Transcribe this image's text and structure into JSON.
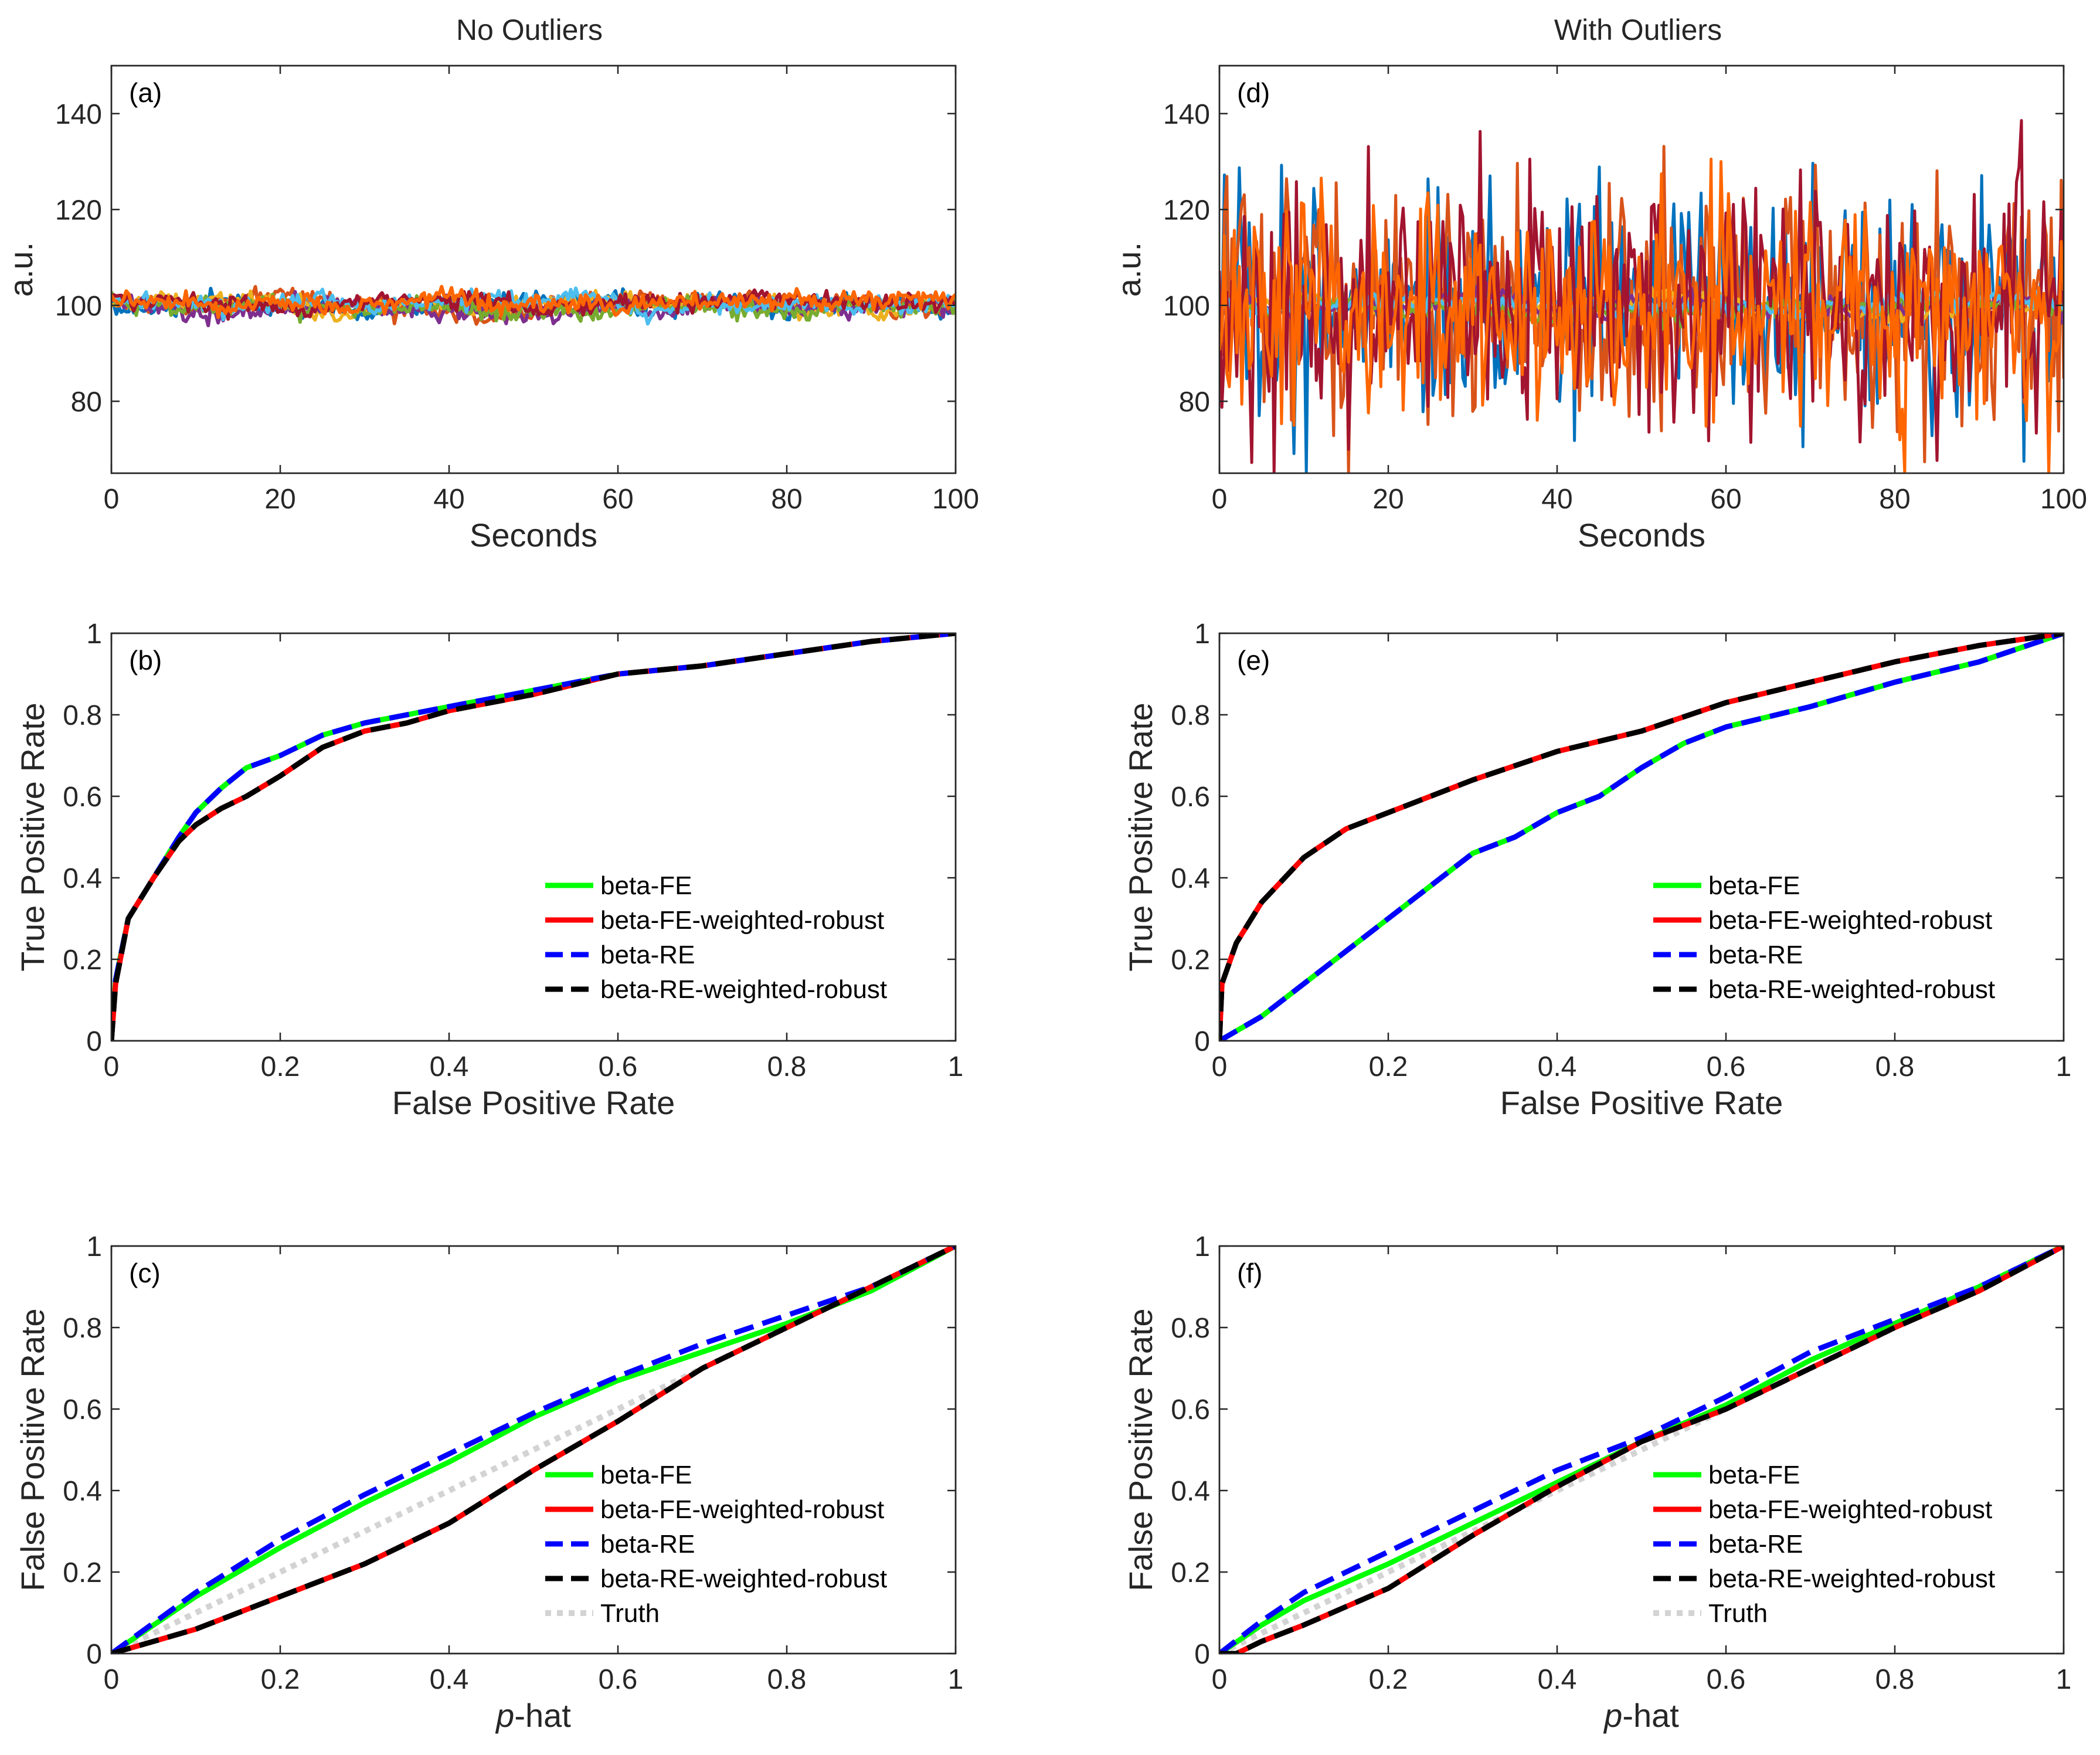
{
  "column_titles": [
    "No Outliers",
    "With Outliers"
  ],
  "colors": {
    "beta-FE": "#00ff00",
    "beta-FE-weighted-robust": "#ff0000",
    "beta-RE": "#0000ff",
    "beta-RE-weighted-robust": "#000000",
    "Truth": "#d3d3d3",
    "timeseries_palette": [
      "#0072bd",
      "#d95319",
      "#edb120",
      "#7e2f8e",
      "#77ac30",
      "#4dbeee",
      "#a2142f",
      "#ff6600"
    ]
  },
  "chart_data": [
    {
      "panel": "(a)",
      "type": "line",
      "column": 0,
      "row": 0,
      "xlabel": "Seconds",
      "ylabel": "a.u.",
      "xlim": [
        0,
        100
      ],
      "ylim": [
        65,
        150
      ],
      "xticks": [
        0,
        20,
        40,
        60,
        80,
        100
      ],
      "yticks": [
        80,
        100,
        120,
        140
      ],
      "series_description": "Eight overlapping noisy time series fluctuating around 100 a.u. (range ≈ 95–105)",
      "n_series": 8,
      "center": 100,
      "spread": 5,
      "outliers": false
    },
    {
      "panel": "(d)",
      "type": "line",
      "column": 1,
      "row": 0,
      "xlabel": "Seconds",
      "ylabel": "a.u.",
      "xlim": [
        0,
        100
      ],
      "ylim": [
        65,
        150
      ],
      "xticks": [
        0,
        20,
        40,
        60,
        80,
        100
      ],
      "yticks": [
        80,
        100,
        120,
        140
      ],
      "series_description": "Eight time series around 100 a.u.; three of them contain large outlier spikes reaching ≈ 65–135",
      "n_series": 8,
      "center": 100,
      "spread": 5,
      "outliers": true
    },
    {
      "panel": "(b)",
      "type": "line",
      "column": 0,
      "row": 1,
      "xlabel": "False Positive Rate",
      "ylabel": "True Positive Rate",
      "xlim": [
        0,
        1
      ],
      "ylim": [
        0,
        1
      ],
      "xticks": [
        0,
        0.2,
        0.4,
        0.6,
        0.8,
        1
      ],
      "yticks": [
        0,
        0.2,
        0.4,
        0.6,
        0.8,
        1
      ],
      "legend": [
        "beta-FE",
        "beta-FE-weighted-robust",
        "beta-RE",
        "beta-RE-weighted-robust"
      ],
      "legend_position": "lower-right",
      "series": [
        {
          "name": "beta-FE",
          "style": "solid",
          "x": [
            0,
            0.005,
            0.02,
            0.05,
            0.08,
            0.1,
            0.13,
            0.16,
            0.2,
            0.25,
            0.3,
            0.35,
            0.4,
            0.5,
            0.6,
            0.7,
            0.8,
            0.9,
            1
          ],
          "y": [
            0,
            0.15,
            0.3,
            0.4,
            0.5,
            0.56,
            0.62,
            0.67,
            0.7,
            0.75,
            0.78,
            0.8,
            0.82,
            0.86,
            0.9,
            0.92,
            0.95,
            0.98,
            1
          ]
        },
        {
          "name": "beta-FE-weighted-robust",
          "style": "solid",
          "x": [
            0,
            0.005,
            0.02,
            0.05,
            0.08,
            0.1,
            0.13,
            0.16,
            0.2,
            0.25,
            0.3,
            0.35,
            0.4,
            0.5,
            0.6,
            0.7,
            0.8,
            0.9,
            1
          ],
          "y": [
            0,
            0.14,
            0.3,
            0.4,
            0.49,
            0.53,
            0.57,
            0.6,
            0.65,
            0.72,
            0.76,
            0.78,
            0.81,
            0.85,
            0.9,
            0.92,
            0.95,
            0.98,
            1
          ]
        },
        {
          "name": "beta-RE",
          "style": "dashed",
          "x": [
            0,
            0.005,
            0.02,
            0.05,
            0.08,
            0.1,
            0.13,
            0.16,
            0.2,
            0.25,
            0.3,
            0.35,
            0.4,
            0.5,
            0.6,
            0.7,
            0.8,
            0.9,
            1
          ],
          "y": [
            0,
            0.15,
            0.3,
            0.4,
            0.5,
            0.56,
            0.62,
            0.67,
            0.7,
            0.75,
            0.78,
            0.8,
            0.82,
            0.86,
            0.9,
            0.92,
            0.95,
            0.98,
            1
          ]
        },
        {
          "name": "beta-RE-weighted-robust",
          "style": "dashed",
          "x": [
            0,
            0.005,
            0.02,
            0.05,
            0.08,
            0.1,
            0.13,
            0.16,
            0.2,
            0.25,
            0.3,
            0.35,
            0.4,
            0.5,
            0.6,
            0.7,
            0.8,
            0.9,
            1
          ],
          "y": [
            0,
            0.14,
            0.3,
            0.4,
            0.49,
            0.53,
            0.57,
            0.6,
            0.65,
            0.72,
            0.76,
            0.78,
            0.81,
            0.85,
            0.9,
            0.92,
            0.95,
            0.98,
            1
          ]
        }
      ]
    },
    {
      "panel": "(e)",
      "type": "line",
      "column": 1,
      "row": 1,
      "xlabel": "False Positive Rate",
      "ylabel": "True Positive Rate",
      "xlim": [
        0,
        1
      ],
      "ylim": [
        0,
        1
      ],
      "xticks": [
        0,
        0.2,
        0.4,
        0.6,
        0.8,
        1
      ],
      "yticks": [
        0,
        0.2,
        0.4,
        0.6,
        0.8,
        1
      ],
      "legend": [
        "beta-FE",
        "beta-FE-weighted-robust",
        "beta-RE",
        "beta-RE-weighted-robust"
      ],
      "legend_position": "lower-right",
      "series": [
        {
          "name": "beta-FE",
          "style": "solid",
          "x": [
            0,
            0.05,
            0.1,
            0.15,
            0.2,
            0.25,
            0.3,
            0.35,
            0.4,
            0.45,
            0.5,
            0.55,
            0.6,
            0.7,
            0.8,
            0.9,
            1
          ],
          "y": [
            0,
            0.06,
            0.14,
            0.22,
            0.3,
            0.38,
            0.46,
            0.5,
            0.56,
            0.6,
            0.67,
            0.73,
            0.77,
            0.82,
            0.88,
            0.93,
            1
          ]
        },
        {
          "name": "beta-FE-weighted-robust",
          "style": "solid",
          "x": [
            0,
            0.003,
            0.02,
            0.05,
            0.1,
            0.15,
            0.2,
            0.25,
            0.3,
            0.4,
            0.5,
            0.6,
            0.7,
            0.8,
            0.9,
            1
          ],
          "y": [
            0,
            0.14,
            0.24,
            0.34,
            0.45,
            0.52,
            0.56,
            0.6,
            0.64,
            0.71,
            0.76,
            0.83,
            0.88,
            0.93,
            0.97,
            1
          ]
        },
        {
          "name": "beta-RE",
          "style": "dashed",
          "x": [
            0,
            0.05,
            0.1,
            0.15,
            0.2,
            0.25,
            0.3,
            0.35,
            0.4,
            0.45,
            0.5,
            0.55,
            0.6,
            0.7,
            0.8,
            0.9,
            1
          ],
          "y": [
            0,
            0.06,
            0.14,
            0.22,
            0.3,
            0.38,
            0.46,
            0.5,
            0.56,
            0.6,
            0.67,
            0.73,
            0.77,
            0.82,
            0.88,
            0.93,
            1
          ]
        },
        {
          "name": "beta-RE-weighted-robust",
          "style": "dashed",
          "x": [
            0,
            0.003,
            0.02,
            0.05,
            0.1,
            0.15,
            0.2,
            0.25,
            0.3,
            0.4,
            0.5,
            0.6,
            0.7,
            0.8,
            0.9,
            1
          ],
          "y": [
            0,
            0.14,
            0.24,
            0.34,
            0.45,
            0.52,
            0.56,
            0.6,
            0.64,
            0.71,
            0.76,
            0.83,
            0.88,
            0.93,
            0.97,
            1
          ]
        }
      ]
    },
    {
      "panel": "(c)",
      "type": "line",
      "column": 0,
      "row": 2,
      "xlabel": "p-hat",
      "xlabel_italic": "p",
      "xlabel_rest": "-hat",
      "ylabel": "False Positive Rate",
      "xlim": [
        0,
        1
      ],
      "ylim": [
        0,
        1
      ],
      "xticks": [
        0,
        0.2,
        0.4,
        0.6,
        0.8,
        1
      ],
      "yticks": [
        0,
        0.2,
        0.4,
        0.6,
        0.8,
        1
      ],
      "legend": [
        "beta-FE",
        "beta-FE-weighted-robust",
        "beta-RE",
        "beta-RE-weighted-robust",
        "Truth"
      ],
      "legend_position": "lower-right",
      "series": [
        {
          "name": "Truth",
          "style": "dotted",
          "x": [
            0,
            1
          ],
          "y": [
            0,
            1
          ]
        },
        {
          "name": "beta-FE",
          "style": "solid",
          "x": [
            0,
            0.1,
            0.2,
            0.3,
            0.4,
            0.5,
            0.6,
            0.7,
            0.8,
            0.9,
            1
          ],
          "y": [
            0,
            0.14,
            0.26,
            0.37,
            0.47,
            0.58,
            0.67,
            0.74,
            0.81,
            0.89,
            1
          ]
        },
        {
          "name": "beta-FE-weighted-robust",
          "style": "solid",
          "x": [
            0,
            0.05,
            0.1,
            0.2,
            0.3,
            0.4,
            0.5,
            0.6,
            0.7,
            0.8,
            0.9,
            1
          ],
          "y": [
            0,
            0.03,
            0.06,
            0.14,
            0.22,
            0.32,
            0.45,
            0.57,
            0.7,
            0.8,
            0.9,
            1
          ]
        },
        {
          "name": "beta-RE",
          "style": "dashed",
          "x": [
            0,
            0.1,
            0.2,
            0.3,
            0.4,
            0.5,
            0.6,
            0.7,
            0.8,
            0.9,
            1
          ],
          "y": [
            0,
            0.15,
            0.28,
            0.39,
            0.49,
            0.59,
            0.68,
            0.76,
            0.83,
            0.9,
            1
          ]
        },
        {
          "name": "beta-RE-weighted-robust",
          "style": "dashed",
          "x": [
            0,
            0.05,
            0.1,
            0.2,
            0.3,
            0.4,
            0.5,
            0.6,
            0.7,
            0.8,
            0.9,
            1
          ],
          "y": [
            0,
            0.03,
            0.06,
            0.14,
            0.22,
            0.32,
            0.45,
            0.57,
            0.7,
            0.8,
            0.9,
            1
          ]
        }
      ]
    },
    {
      "panel": "(f)",
      "type": "line",
      "column": 1,
      "row": 2,
      "xlabel": "p-hat",
      "xlabel_italic": "p",
      "xlabel_rest": "-hat",
      "ylabel": "False Positive Rate",
      "xlim": [
        0,
        1
      ],
      "ylim": [
        0,
        1
      ],
      "xticks": [
        0,
        0.2,
        0.4,
        0.6,
        0.8,
        1
      ],
      "yticks": [
        0,
        0.2,
        0.4,
        0.6,
        0.8,
        1
      ],
      "legend": [
        "beta-FE",
        "beta-FE-weighted-robust",
        "beta-RE",
        "beta-RE-weighted-robust",
        "Truth"
      ],
      "legend_position": "lower-right",
      "series": [
        {
          "name": "Truth",
          "style": "dotted",
          "x": [
            0,
            1
          ],
          "y": [
            0,
            1
          ]
        },
        {
          "name": "beta-FE",
          "style": "solid",
          "x": [
            0,
            0.05,
            0.1,
            0.2,
            0.3,
            0.4,
            0.5,
            0.6,
            0.7,
            0.8,
            0.9,
            1
          ],
          "y": [
            0,
            0.07,
            0.13,
            0.22,
            0.32,
            0.42,
            0.52,
            0.61,
            0.72,
            0.81,
            0.9,
            1
          ]
        },
        {
          "name": "beta-FE-weighted-robust",
          "style": "solid",
          "x": [
            0,
            0.02,
            0.05,
            0.1,
            0.2,
            0.3,
            0.4,
            0.5,
            0.6,
            0.7,
            0.8,
            0.9,
            1
          ],
          "y": [
            0,
            0.0,
            0.03,
            0.07,
            0.16,
            0.29,
            0.41,
            0.52,
            0.6,
            0.7,
            0.8,
            0.89,
            1
          ]
        },
        {
          "name": "beta-RE",
          "style": "dashed",
          "x": [
            0,
            0.05,
            0.1,
            0.2,
            0.3,
            0.4,
            0.5,
            0.6,
            0.7,
            0.8,
            0.9,
            1
          ],
          "y": [
            0,
            0.08,
            0.15,
            0.25,
            0.35,
            0.45,
            0.53,
            0.63,
            0.74,
            0.82,
            0.9,
            1
          ]
        },
        {
          "name": "beta-RE-weighted-robust",
          "style": "dashed",
          "x": [
            0,
            0.02,
            0.05,
            0.1,
            0.2,
            0.3,
            0.4,
            0.5,
            0.6,
            0.7,
            0.8,
            0.9,
            1
          ],
          "y": [
            0,
            0.0,
            0.03,
            0.07,
            0.16,
            0.29,
            0.41,
            0.52,
            0.6,
            0.7,
            0.8,
            0.89,
            1
          ]
        }
      ]
    }
  ]
}
